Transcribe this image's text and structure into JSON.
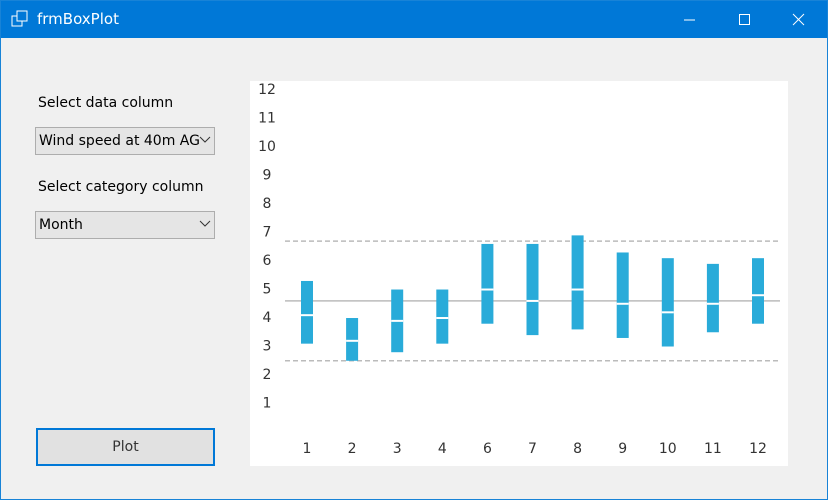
{
  "window": {
    "title": "frmBoxPlot"
  },
  "form": {
    "data_label": "Select data column",
    "data_value": "Wind speed at 40m AG",
    "category_label": "Select category column",
    "category_value": "Month",
    "button": "Plot"
  },
  "chart_data": {
    "type": "box",
    "categories": [
      "1",
      "2",
      "3",
      "4",
      "6",
      "7",
      "8",
      "9",
      "10",
      "11",
      "12"
    ],
    "boxes": [
      {
        "q1": 3.1,
        "median": 4.1,
        "q3": 5.3
      },
      {
        "q1": 2.5,
        "median": 3.2,
        "q3": 4.0
      },
      {
        "q1": 2.8,
        "median": 3.9,
        "q3": 5.0
      },
      {
        "q1": 3.1,
        "median": 4.0,
        "q3": 5.0
      },
      {
        "q1": 3.8,
        "median": 5.0,
        "q3": 6.6
      },
      {
        "q1": 3.4,
        "median": 4.6,
        "q3": 6.6
      },
      {
        "q1": 3.6,
        "median": 5.0,
        "q3": 6.9
      },
      {
        "q1": 3.3,
        "median": 4.5,
        "q3": 6.3
      },
      {
        "q1": 3.0,
        "median": 4.2,
        "q3": 6.1
      },
      {
        "q1": 3.5,
        "median": 4.5,
        "q3": 5.9
      },
      {
        "q1": 3.8,
        "median": 4.8,
        "q3": 6.1
      }
    ],
    "color": "#29abd9",
    "reference_lines": [
      {
        "value": 6.7,
        "style": "dashed",
        "color": "#bbbbbb"
      },
      {
        "value": 4.6,
        "style": "solid",
        "color": "#bbbbbb"
      },
      {
        "value": 2.5,
        "style": "dashed",
        "color": "#bbbbbb"
      }
    ],
    "ylim": [
      0,
      12.3
    ],
    "yticks": [
      1,
      2,
      3,
      4,
      5,
      6,
      7,
      8,
      9,
      10,
      11,
      12
    ]
  }
}
